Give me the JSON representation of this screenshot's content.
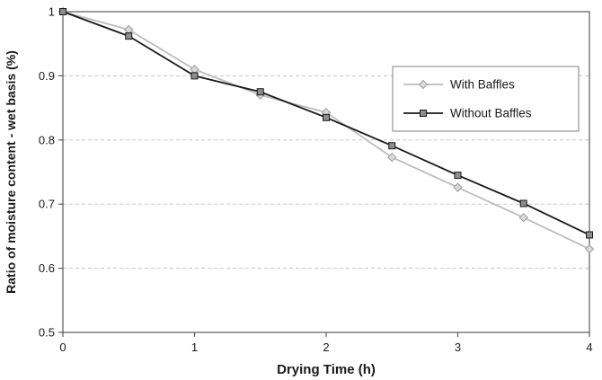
{
  "chart_data": {
    "type": "line",
    "title": "",
    "xlabel": "Drying Time (h)",
    "ylabel": "Ratio of moisture content - wet basis (%)",
    "x": [
      0,
      0.5,
      1,
      1.5,
      2,
      2.5,
      3,
      3.5,
      4
    ],
    "series": [
      {
        "name": "With Baffles",
        "marker": "diamond",
        "line_color": "#bdbdbd",
        "marker_fill": "#d9d9d9",
        "marker_stroke": "#9c9c9c",
        "values": [
          1.0,
          0.972,
          0.91,
          0.87,
          0.843,
          0.773,
          0.726,
          0.679,
          0.63
        ]
      },
      {
        "name": "Without Baffles",
        "marker": "square",
        "line_color": "#1a1a1a",
        "marker_fill": "#8c8c8c",
        "marker_stroke": "#1a1a1a",
        "values": [
          1.0,
          0.962,
          0.9,
          0.875,
          0.835,
          0.791,
          0.745,
          0.701,
          0.652
        ]
      }
    ],
    "xlim": [
      0,
      4
    ],
    "ylim": [
      0.5,
      1.0
    ],
    "x_ticks": [
      0,
      1,
      2,
      3,
      4
    ],
    "x_tick_labels": [
      "0",
      "1",
      "2",
      "3",
      "4"
    ],
    "y_ticks": [
      0.5,
      0.6,
      0.7,
      0.8,
      0.9,
      1.0
    ],
    "y_tick_labels": [
      "0.5",
      "0.6",
      "0.7",
      "0.8",
      "0.9",
      "1"
    ],
    "grid": "horizontal-dashed",
    "legend": {
      "position": "inside-top-right",
      "entries": [
        "With Baffles",
        "Without Baffles"
      ]
    },
    "colors": {
      "grid": "#c8c8c8",
      "frame": "#595959",
      "text": "#1a1a1a",
      "background": "#ffffff"
    }
  }
}
